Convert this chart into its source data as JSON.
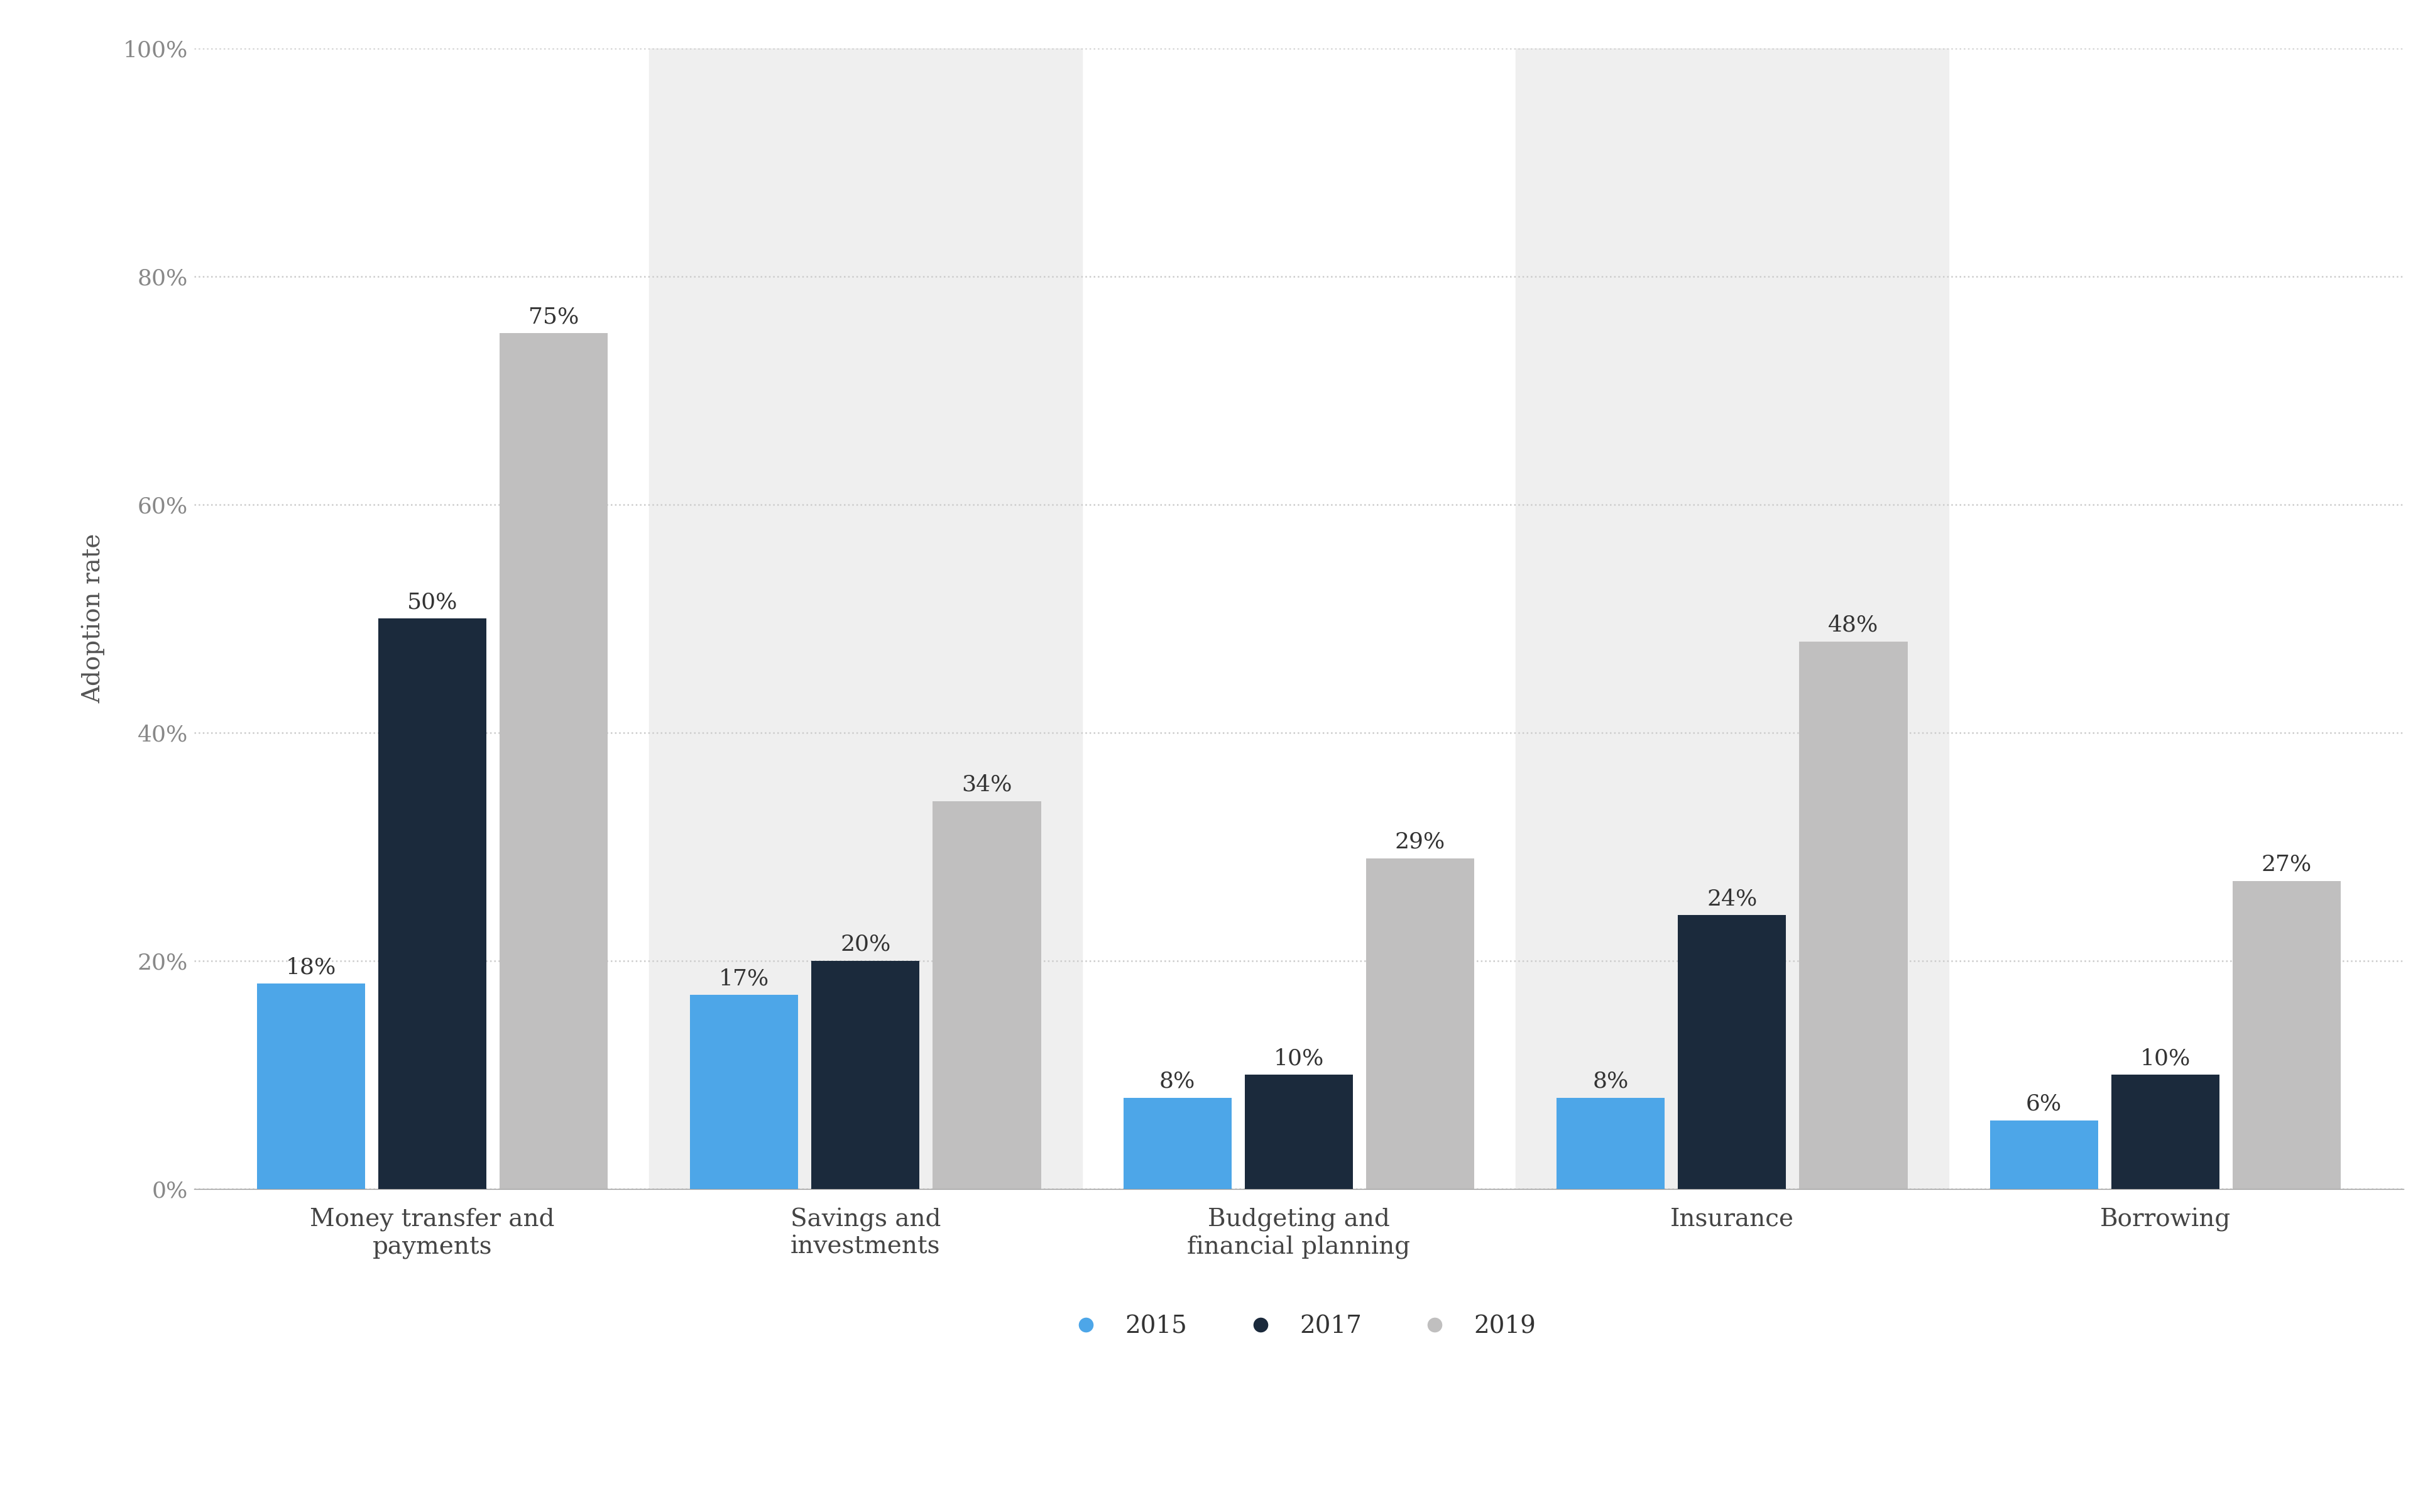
{
  "categories": [
    "Money transfer and\npayments",
    "Savings and\ninvestments",
    "Budgeting and\nfinancial planning",
    "Insurance",
    "Borrowing"
  ],
  "years": [
    "2015",
    "2017",
    "2019"
  ],
  "values": {
    "2015": [
      18,
      17,
      8,
      8,
      6
    ],
    "2017": [
      50,
      20,
      10,
      24,
      10
    ],
    "2019": [
      75,
      34,
      29,
      48,
      27
    ]
  },
  "colors": {
    "2015": "#4da6e8",
    "2017": "#1b2a3c",
    "2019": "#c0bfbf"
  },
  "bar_width": 0.25,
  "ylabel": "Adoption rate",
  "ylim": [
    0,
    100
  ],
  "yticks": [
    0,
    20,
    40,
    60,
    80,
    100
  ],
  "ytick_labels": [
    "0%",
    "20%",
    "40%",
    "60%",
    "80%",
    "100%"
  ],
  "background_color": "#ffffff",
  "plot_bg_color": "#efefef",
  "grid_color": "#cccccc",
  "shaded_groups": [
    1,
    3
  ],
  "label_fontsize": 28,
  "tick_fontsize": 26,
  "legend_fontsize": 28,
  "value_fontsize": 26,
  "ylabel_fontsize": 28
}
